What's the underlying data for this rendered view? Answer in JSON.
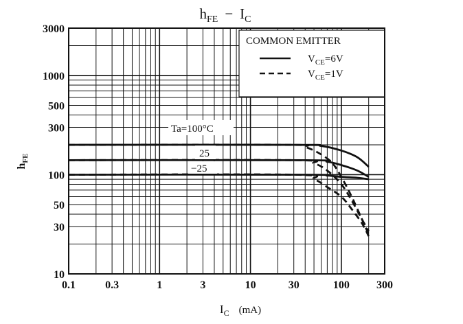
{
  "chart_data": {
    "type": "line",
    "title": {
      "main": "h",
      "sub": "FE",
      "sep": "−",
      "main2": "I",
      "sub2": "C"
    },
    "xlabel": {
      "main": "I",
      "sub": "C",
      "unit": "(mA)"
    },
    "ylabel": {
      "main": "h",
      "sub": "FE"
    },
    "x_scale": "log",
    "y_scale": "log",
    "xlim": [
      0.1,
      300
    ],
    "ylim": [
      10,
      3000
    ],
    "x_tick_labels": [
      "0.1",
      "0.3",
      "1",
      "3",
      "10",
      "30",
      "100",
      "300"
    ],
    "y_tick_labels": [
      "10",
      "30",
      "50",
      "100",
      "300",
      "500",
      "1000",
      "3000"
    ],
    "x_ticks": [
      0.1,
      0.3,
      1,
      3,
      10,
      30,
      100,
      300
    ],
    "y_ticks": [
      10,
      30,
      50,
      100,
      300,
      500,
      1000,
      3000
    ],
    "grid": true,
    "legend": {
      "title": "COMMON EMITTER",
      "placement": "top-right",
      "entries": [
        {
          "prefix": "V",
          "sub": "CE",
          "rest": "=6V",
          "style": "solid"
        },
        {
          "prefix": "V",
          "sub": "CE",
          "rest": "=1V",
          "style": "dashed"
        }
      ]
    },
    "annotations": {
      "ta100": "Ta=100°C",
      "ta25": "25",
      "tam25": "−25"
    },
    "series": [
      {
        "name": "Ta=100°C, VCE=6V",
        "style": "solid",
        "x": [
          0.1,
          30,
          60,
          100,
          150,
          200
        ],
        "y": [
          200,
          200,
          195,
          175,
          150,
          120
        ]
      },
      {
        "name": "Ta=25°C, VCE=6V",
        "style": "solid",
        "x": [
          0.1,
          40,
          70,
          100,
          150,
          200
        ],
        "y": [
          140,
          140,
          135,
          125,
          110,
          95
        ]
      },
      {
        "name": "Ta=-25°C, VCE=6V",
        "style": "solid",
        "x": [
          0.1,
          40,
          70,
          100,
          150,
          200
        ],
        "y": [
          100,
          100,
          98,
          95,
          93,
          90
        ]
      },
      {
        "name": "Ta=100°C, VCE=1V",
        "style": "dashed",
        "x": [
          0.1,
          25,
          40,
          60,
          80,
          100,
          130,
          170,
          200
        ],
        "y": [
          200,
          200,
          190,
          160,
          130,
          95,
          60,
          35,
          25
        ]
      },
      {
        "name": "Ta=25°C, VCE=1V",
        "style": "dashed",
        "x": [
          0.1,
          30,
          50,
          70,
          100,
          130,
          170,
          200
        ],
        "y": [
          140,
          140,
          130,
          110,
          80,
          55,
          35,
          27
        ]
      },
      {
        "name": "Ta=-25°C, VCE=1V",
        "style": "dashed",
        "x": [
          0.1,
          30,
          50,
          70,
          100,
          130,
          170,
          200
        ],
        "y": [
          100,
          100,
          90,
          75,
          60,
          45,
          32,
          24
        ]
      }
    ]
  }
}
